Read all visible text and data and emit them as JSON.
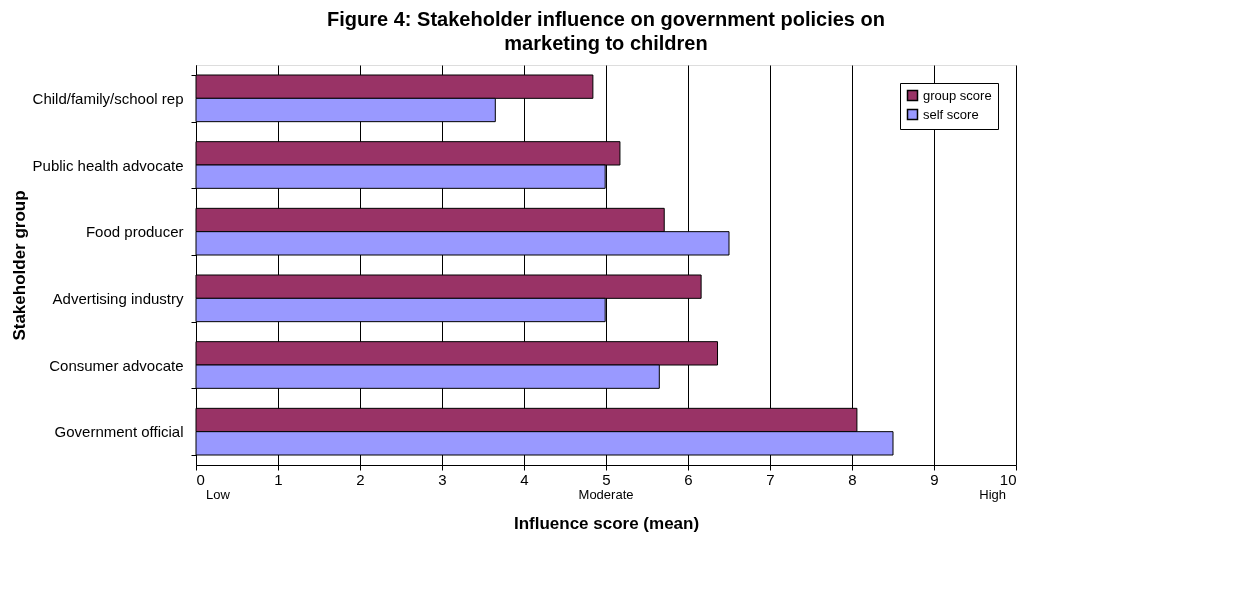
{
  "chart_data": {
    "type": "bar",
    "orientation": "horizontal",
    "title": "Figure 4: Stakeholder influence on government policies on marketing to children",
    "xlabel": "Influence score (mean)",
    "ylabel": "Stakeholder group",
    "categories": [
      "Child/family/school rep",
      "Public health advocate",
      "Food producer",
      "Advertising industry",
      "Consumer advocate",
      "Government official"
    ],
    "series": [
      {
        "name": "group score",
        "color": "#993366",
        "values": [
          4.84,
          5.17,
          5.71,
          6.16,
          6.36,
          8.06
        ]
      },
      {
        "name": "self score",
        "color": "#9999ff",
        "values": [
          3.65,
          4.99,
          6.5,
          4.99,
          5.65,
          8.5
        ]
      }
    ],
    "xlim": [
      0,
      10
    ],
    "xticks": [
      0,
      1,
      2,
      3,
      4,
      5,
      6,
      7,
      8,
      9,
      10
    ],
    "grid": "x",
    "legend": "top right",
    "annotations": [
      "Low",
      "Moderate",
      "High"
    ]
  }
}
